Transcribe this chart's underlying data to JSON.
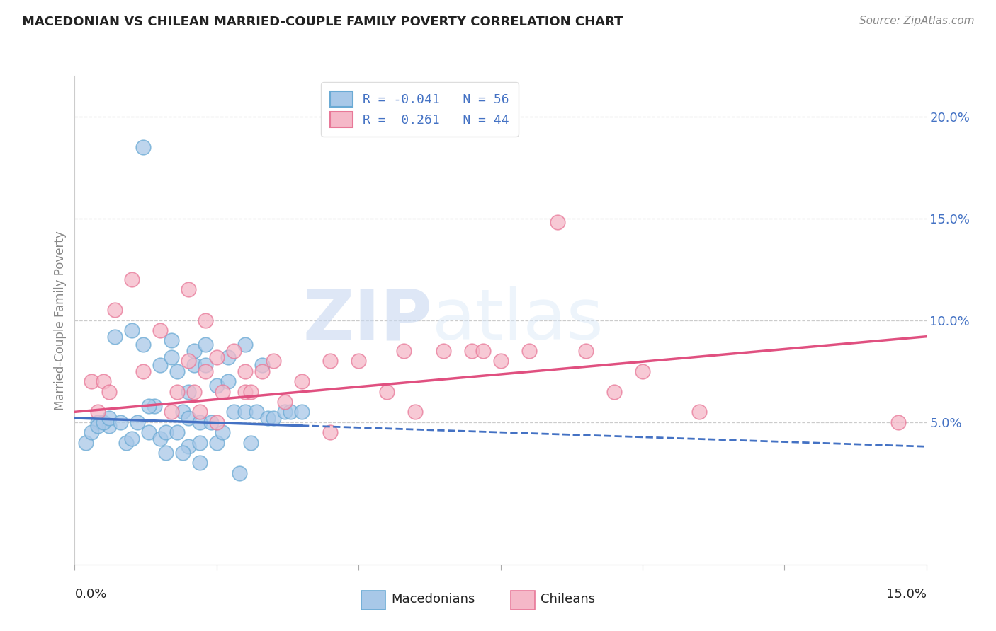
{
  "title": "MACEDONIAN VS CHILEAN MARRIED-COUPLE FAMILY POVERTY CORRELATION CHART",
  "source": "Source: ZipAtlas.com",
  "ylabel": "Married-Couple Family Poverty",
  "ylabel_right_ticks": [
    "5.0%",
    "10.0%",
    "15.0%",
    "20.0%"
  ],
  "ylabel_right_vals": [
    5.0,
    10.0,
    15.0,
    20.0
  ],
  "xmin": 0.0,
  "xmax": 15.0,
  "ymin": -2.0,
  "ymax": 22.0,
  "macedonian_color": "#a8c8e8",
  "chilean_color": "#f5b8c8",
  "macedonian_edge": "#6aaad4",
  "chilean_edge": "#e87898",
  "trend_mac_color": "#4472c4",
  "trend_chi_color": "#e05080",
  "trend_mac_start_y": 5.2,
  "trend_mac_end_y": 3.8,
  "trend_chi_start_y": 5.5,
  "trend_chi_end_y": 9.2,
  "R_mac": -0.041,
  "N_mac": 56,
  "R_chi": 0.261,
  "N_chi": 44,
  "watermark_zip": "ZIP",
  "watermark_atlas": "atlas",
  "macedonian_x": [
    1.2,
    0.4,
    0.6,
    0.7,
    0.9,
    1.0,
    1.1,
    1.2,
    1.3,
    1.4,
    1.5,
    1.5,
    1.6,
    1.7,
    1.7,
    1.8,
    1.8,
    1.9,
    2.0,
    2.0,
    2.0,
    2.1,
    2.1,
    2.2,
    2.2,
    2.3,
    2.3,
    2.4,
    2.5,
    2.5,
    2.6,
    2.7,
    2.7,
    2.8,
    2.9,
    3.0,
    3.0,
    3.1,
    3.2,
    3.3,
    3.4,
    3.5,
    3.7,
    3.8,
    4.0,
    0.2,
    0.3,
    0.4,
    0.5,
    0.6,
    0.8,
    1.0,
    1.3,
    1.6,
    1.9,
    2.2
  ],
  "macedonian_y": [
    18.5,
    5.0,
    4.8,
    9.2,
    4.0,
    9.5,
    5.0,
    8.8,
    4.5,
    5.8,
    4.2,
    7.8,
    4.5,
    8.2,
    9.0,
    4.5,
    7.5,
    5.5,
    3.8,
    5.2,
    6.5,
    7.8,
    8.5,
    4.0,
    5.0,
    7.8,
    8.8,
    5.0,
    4.0,
    6.8,
    4.5,
    7.0,
    8.2,
    5.5,
    2.5,
    5.5,
    8.8,
    4.0,
    5.5,
    7.8,
    5.2,
    5.2,
    5.5,
    5.5,
    5.5,
    4.0,
    4.5,
    4.8,
    5.0,
    5.2,
    5.0,
    4.2,
    5.8,
    3.5,
    3.5,
    3.0
  ],
  "chilean_x": [
    0.3,
    0.5,
    0.7,
    1.0,
    1.2,
    1.5,
    1.7,
    1.8,
    2.0,
    2.0,
    2.1,
    2.2,
    2.3,
    2.3,
    2.5,
    2.5,
    2.6,
    2.8,
    3.0,
    3.0,
    3.1,
    3.3,
    3.5,
    3.7,
    4.0,
    4.5,
    4.5,
    5.0,
    5.5,
    5.8,
    6.0,
    6.5,
    7.0,
    7.2,
    7.5,
    8.0,
    9.0,
    9.5,
    10.0,
    11.0,
    0.4,
    0.6,
    14.5,
    8.5
  ],
  "chilean_y": [
    7.0,
    7.0,
    10.5,
    12.0,
    7.5,
    9.5,
    5.5,
    6.5,
    8.0,
    11.5,
    6.5,
    5.5,
    7.5,
    10.0,
    5.0,
    8.2,
    6.5,
    8.5,
    6.5,
    7.5,
    6.5,
    7.5,
    8.0,
    6.0,
    7.0,
    4.5,
    8.0,
    8.0,
    6.5,
    8.5,
    5.5,
    8.5,
    8.5,
    8.5,
    8.0,
    8.5,
    8.5,
    6.5,
    7.5,
    5.5,
    5.5,
    6.5,
    5.0,
    14.8
  ]
}
